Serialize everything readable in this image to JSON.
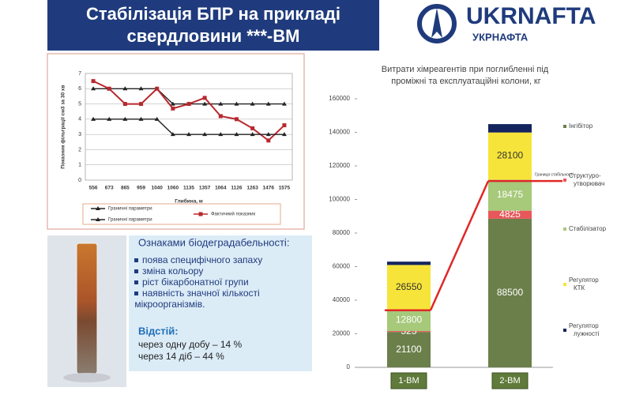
{
  "header": {
    "title_lines": [
      "Стабілізація БПР на прикладі",
      "свердловини ***-ВМ"
    ]
  },
  "logo": {
    "name": "UKRNAFTA",
    "subname": "УКРНАФТА"
  },
  "notes": {
    "heading": "Ознаками біодеградабельності:",
    "bullets": [
      "поява специфічного запаху",
      "зміна кольору",
      "ріст бікарбонатної групи",
      "наявність значної кількості мікроорганізмів."
    ],
    "sediment_heading": "Відстій:",
    "sediment": [
      "через одну добу – 14 %",
      "через 14 діб – 44 %"
    ]
  },
  "chart_data": [
    {
      "type": "line",
      "ylabel": "Показник фільтрації см3 за 30 хв",
      "xlabel": "Глибина, м",
      "categories": [
        "556",
        "673",
        "865",
        "959",
        "1040",
        "1060",
        "1135",
        "1357",
        "1064",
        "1126",
        "1263",
        "1476",
        "1575"
      ],
      "ylim": [
        0,
        7
      ],
      "yticks": [
        0,
        1,
        2,
        3,
        4,
        5,
        6,
        7
      ],
      "grid": true,
      "series": [
        {
          "name": "Граничні параметри",
          "color": "#222222",
          "marker": "triangle",
          "values": [
            6,
            6,
            6,
            6,
            6,
            5,
            5,
            5,
            5,
            5,
            5,
            5,
            5
          ]
        },
        {
          "name": "Фактичний показник",
          "color": "#b8282e",
          "marker": "square",
          "values": [
            6.5,
            6,
            5,
            5,
            6,
            4.7,
            5,
            5.4,
            4.2,
            4,
            3.4,
            2.6,
            3.6
          ]
        },
        {
          "name": "Граничні параметри",
          "color": "#222222",
          "marker": "triangle",
          "values": [
            4,
            4,
            4,
            4,
            4,
            3,
            3,
            3,
            3,
            3,
            3,
            3,
            3
          ]
        }
      ]
    },
    {
      "type": "stacked_bar",
      "title": "Витрати хімреагентів при поглибленні під проміжні та експлуатаційні колони, кг",
      "categories": [
        "1-ВМ",
        "2-ВМ"
      ],
      "ylim": [
        0,
        160000
      ],
      "yticks": [
        0,
        20000,
        40000,
        60000,
        80000,
        100000,
        120000,
        140000,
        160000
      ],
      "series": [
        {
          "name": "Інгібітор",
          "color": "#6b7f4a",
          "values": [
            21100,
            88500
          ],
          "value_labels": [
            "21100",
            "88500"
          ]
        },
        {
          "name": "Структуро-утворювач",
          "color": "#e8585a",
          "values": [
            525,
            4825
          ],
          "value_labels": [
            "525",
            "4825"
          ]
        },
        {
          "name": "Стабілізатор",
          "color": "#a6c97a",
          "values": [
            12800,
            18475
          ],
          "value_labels": [
            "12800",
            "18475"
          ]
        },
        {
          "name": "Регулятор КТК",
          "color": "#f7e43a",
          "values": [
            26550,
            28100
          ],
          "value_labels": [
            "26550",
            "28100"
          ]
        },
        {
          "name": "Регулятор лужності",
          "color": "#14255e",
          "values": [
            2000,
            5000
          ]
        }
      ],
      "limit_line": {
        "color": "#e02828",
        "values": [
          34000,
          111000
        ],
        "annotation": "Границя стабільності"
      }
    }
  ]
}
